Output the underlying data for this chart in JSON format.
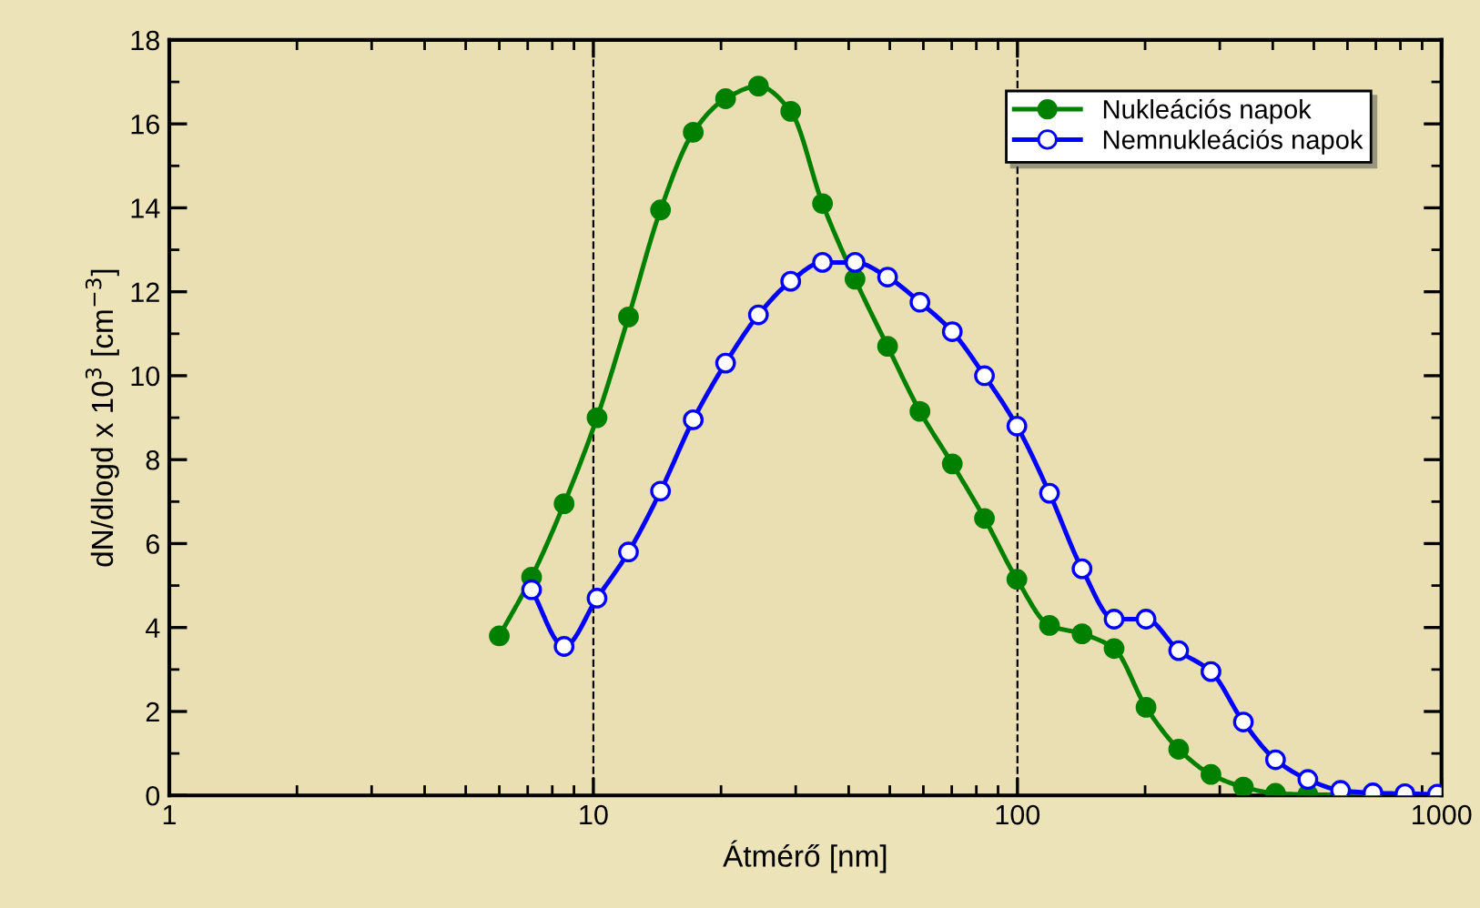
{
  "chart_data": {
    "type": "line",
    "xlabel": "Átmérő [nm]",
    "ylabel": "dN/dlogd x 10$^{3}$ [cm$^{−3}$]",
    "log": "x",
    "xlim": [
      1,
      1000
    ],
    "xticks": [
      1,
      10,
      100,
      1000
    ],
    "ylim": [
      0,
      18
    ],
    "yticks": [
      0,
      2,
      4,
      6,
      8,
      10,
      12,
      14,
      16,
      18
    ],
    "grid": false,
    "legend": "top right",
    "marker": "circle",
    "line_style": "solid",
    "ref_lines": [
      {
        "axis": "x",
        "value": 10,
        "color": "#000000",
        "line_style": "dashed"
      },
      {
        "axis": "x",
        "value": 100,
        "color": "#000000",
        "line_style": "dashed"
      }
    ],
    "series": [
      {
        "name": "Nukleációs napok",
        "color": "#008000",
        "x": [
          6.0,
          7.15,
          8.53,
          10.2,
          12.1,
          14.4,
          17.2,
          20.5,
          24.5,
          29.2,
          34.7,
          41.4,
          49.4,
          58.9,
          70.2,
          83.6,
          99.7,
          119,
          142,
          169,
          201,
          240,
          286,
          341,
          406,
          484,
          689
        ],
        "values": [
          3.8,
          5.2,
          6.95,
          9.0,
          11.4,
          13.95,
          15.8,
          16.6,
          16.9,
          16.3,
          14.1,
          12.3,
          10.7,
          9.15,
          7.9,
          6.6,
          5.15,
          4.05,
          3.85,
          3.5,
          2.1,
          1.1,
          0.5,
          0.2,
          0.05,
          0.02,
          0.01
        ]
      },
      {
        "name": "Nemnukleációs napok",
        "color": "#0000ff",
        "x": [
          7.15,
          8.53,
          10.2,
          12.1,
          14.4,
          17.2,
          20.5,
          24.5,
          29.2,
          34.7,
          41.4,
          49.4,
          58.9,
          70.2,
          83.6,
          99.7,
          119,
          142,
          169,
          201,
          240,
          286,
          341,
          406,
          484,
          578,
          689,
          820,
          978
        ],
        "values": [
          4.9,
          3.55,
          4.7,
          5.8,
          7.25,
          8.95,
          10.3,
          11.45,
          12.25,
          12.7,
          12.7,
          12.35,
          11.75,
          11.05,
          10.0,
          8.8,
          7.2,
          5.4,
          4.2,
          4.2,
          3.45,
          2.95,
          1.75,
          0.85,
          0.38,
          0.12,
          0.06,
          0.04,
          0.03
        ]
      }
    ]
  }
}
